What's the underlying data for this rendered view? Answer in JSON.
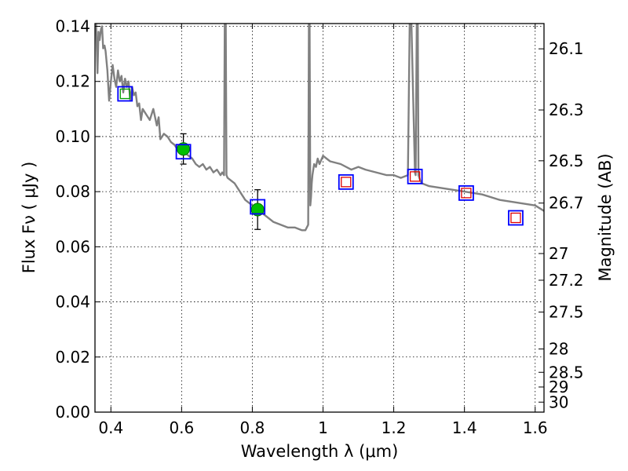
{
  "chart_data": {
    "type": "line",
    "xlabel": "Wavelength  λ (μm)",
    "ylabel": "Flux  Fν  ( μJy )",
    "y2label": "Magnitude (AB)",
    "xlim": [
      0.355,
      1.625
    ],
    "ylim": [
      0.0,
      0.141
    ],
    "grid": true,
    "x_ticks": [
      0.4,
      0.6,
      0.8,
      1.0,
      1.2,
      1.4,
      1.6
    ],
    "x_tick_labels": [
      "0.4",
      "0.6",
      "0.8",
      "1",
      "1.2",
      "1.4",
      "1.6"
    ],
    "y_ticks": [
      0.0,
      0.02,
      0.04,
      0.06,
      0.08,
      0.1,
      0.12,
      0.14
    ],
    "y_tick_labels": [
      "0.00",
      "0.02",
      "0.04",
      "0.06",
      "0.08",
      "0.10",
      "0.12",
      "0.14"
    ],
    "right_ticks": [
      {
        "mag": 26.1,
        "label": "26.1"
      },
      {
        "mag": 26.3,
        "label": "26.3"
      },
      {
        "mag": 26.5,
        "label": "26.5"
      },
      {
        "mag": 26.7,
        "label": "26.7"
      },
      {
        "mag": 27.0,
        "label": "27"
      },
      {
        "mag": 27.2,
        "label": "27.2"
      },
      {
        "mag": 27.5,
        "label": "27.5"
      },
      {
        "mag": 28.0,
        "label": "28"
      },
      {
        "mag": 28.5,
        "label": "28.5"
      },
      {
        "mag": 29.0,
        "label": "29"
      },
      {
        "mag": 30.0,
        "label": "30"
      }
    ],
    "series": [
      {
        "name": "model spectrum",
        "color": "#808080",
        "x": [
          0.358,
          0.362,
          0.365,
          0.368,
          0.372,
          0.375,
          0.378,
          0.382,
          0.385,
          0.39,
          0.395,
          0.4,
          0.405,
          0.41,
          0.415,
          0.42,
          0.425,
          0.43,
          0.435,
          0.44,
          0.445,
          0.45,
          0.455,
          0.46,
          0.465,
          0.47,
          0.475,
          0.48,
          0.485,
          0.49,
          0.5,
          0.51,
          0.52,
          0.53,
          0.535,
          0.54,
          0.55,
          0.56,
          0.57,
          0.58,
          0.59,
          0.6,
          0.61,
          0.62,
          0.63,
          0.64,
          0.65,
          0.66,
          0.67,
          0.68,
          0.69,
          0.7,
          0.71,
          0.715,
          0.72,
          0.722,
          0.725,
          0.727,
          0.73,
          0.74,
          0.75,
          0.76,
          0.77,
          0.78,
          0.8,
          0.82,
          0.84,
          0.86,
          0.88,
          0.9,
          0.92,
          0.94,
          0.95,
          0.958,
          0.96,
          0.962,
          0.964,
          0.966,
          0.968,
          0.97,
          0.975,
          0.98,
          0.985,
          0.99,
          1.0,
          1.02,
          1.05,
          1.08,
          1.1,
          1.12,
          1.15,
          1.18,
          1.2,
          1.22,
          1.24,
          1.245,
          1.25,
          1.26,
          1.262,
          1.265,
          1.268,
          1.27,
          1.275,
          1.28,
          1.3,
          1.35,
          1.4,
          1.45,
          1.5,
          1.55,
          1.6,
          1.625
        ],
        "y": [
          0.141,
          0.123,
          0.138,
          0.135,
          0.139,
          0.14,
          0.132,
          0.133,
          0.131,
          0.124,
          0.113,
          0.12,
          0.126,
          0.121,
          0.118,
          0.124,
          0.12,
          0.122,
          0.116,
          0.121,
          0.118,
          0.12,
          0.113,
          0.118,
          0.115,
          0.116,
          0.111,
          0.112,
          0.106,
          0.11,
          0.108,
          0.106,
          0.11,
          0.104,
          0.107,
          0.099,
          0.101,
          0.1,
          0.098,
          0.097,
          0.095,
          0.095,
          0.094,
          0.093,
          0.092,
          0.09,
          0.089,
          0.09,
          0.088,
          0.089,
          0.087,
          0.088,
          0.086,
          0.087,
          0.086,
          0.141,
          0.141,
          0.086,
          0.085,
          0.084,
          0.083,
          0.081,
          0.079,
          0.077,
          0.075,
          0.073,
          0.071,
          0.069,
          0.068,
          0.067,
          0.067,
          0.066,
          0.066,
          0.068,
          0.141,
          0.141,
          0.075,
          0.078,
          0.083,
          0.086,
          0.09,
          0.089,
          0.092,
          0.09,
          0.093,
          0.091,
          0.09,
          0.088,
          0.089,
          0.088,
          0.087,
          0.086,
          0.086,
          0.085,
          0.086,
          0.141,
          0.141,
          0.087,
          0.086,
          0.141,
          0.141,
          0.086,
          0.084,
          0.083,
          0.082,
          0.081,
          0.08,
          0.079,
          0.077,
          0.076,
          0.075,
          0.073
        ]
      },
      {
        "name": "observed photometry",
        "marker": "filled-circle",
        "color": "#00bf00",
        "x": [
          0.605,
          0.815
        ],
        "y": [
          0.0955,
          0.0735
        ],
        "err": [
          0.0055,
          0.0072
        ]
      },
      {
        "name": "model photometry (blue squares)",
        "marker": "open-square",
        "color": "#0000ff",
        "x": [
          0.44,
          0.605,
          0.815,
          1.065,
          1.26,
          1.405,
          1.545
        ],
        "y": [
          0.1155,
          0.0945,
          0.0745,
          0.0835,
          0.0855,
          0.0795,
          0.0705
        ]
      },
      {
        "name": "green inner squares",
        "marker": "open-square",
        "color": "#00a000",
        "x": [
          0.44
        ],
        "y": [
          0.1155
        ]
      },
      {
        "name": "red inner squares",
        "marker": "open-square",
        "color": "#e00000",
        "x": [
          1.065,
          1.26,
          1.405,
          1.545
        ],
        "y": [
          0.0835,
          0.0855,
          0.0795,
          0.0705
        ]
      }
    ]
  }
}
